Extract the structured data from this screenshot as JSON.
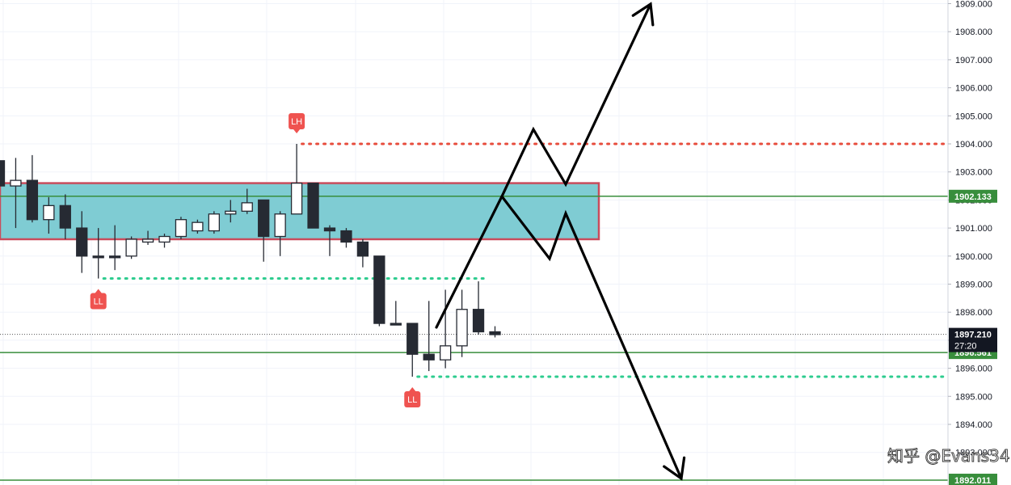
{
  "chart_data": {
    "type": "candlestick",
    "title": "",
    "xlabel": "",
    "ylabel": "",
    "ylim": [
      1892.0,
      1909.1
    ],
    "grid": true,
    "y_ticks": [
      "1909.000",
      "1908.000",
      "1907.000",
      "1906.000",
      "1905.000",
      "1904.000",
      "1903.000",
      "1902.000",
      "1901.000",
      "1900.000",
      "1899.000",
      "1898.000",
      "1897.000",
      "1896.000",
      "1895.000",
      "1894.000",
      "1893.000"
    ],
    "candles": [
      {
        "o": 1903.4,
        "h": 1903.5,
        "l": 1902.5,
        "c": 1902.5
      },
      {
        "o": 1902.5,
        "h": 1903.5,
        "l": 1901.0,
        "c": 1902.7
      },
      {
        "o": 1902.7,
        "h": 1903.6,
        "l": 1901.2,
        "c": 1901.3
      },
      {
        "o": 1901.3,
        "h": 1902.1,
        "l": 1900.8,
        "c": 1901.8
      },
      {
        "o": 1901.8,
        "h": 1902.2,
        "l": 1900.6,
        "c": 1901.0
      },
      {
        "o": 1901.0,
        "h": 1901.6,
        "l": 1899.4,
        "c": 1900.0
      },
      {
        "o": 1900.0,
        "h": 1901.0,
        "l": 1899.2,
        "c": 1900.0
      },
      {
        "o": 1900.0,
        "h": 1901.1,
        "l": 1899.5,
        "c": 1900.0
      },
      {
        "o": 1900.0,
        "h": 1900.7,
        "l": 1899.9,
        "c": 1900.6
      },
      {
        "o": 1900.5,
        "h": 1900.9,
        "l": 1900.4,
        "c": 1900.6
      },
      {
        "o": 1900.5,
        "h": 1900.8,
        "l": 1900.3,
        "c": 1900.7
      },
      {
        "o": 1900.7,
        "h": 1901.4,
        "l": 1900.6,
        "c": 1901.3
      },
      {
        "o": 1900.9,
        "h": 1901.3,
        "l": 1900.8,
        "c": 1901.2
      },
      {
        "o": 1900.9,
        "h": 1901.6,
        "l": 1900.8,
        "c": 1901.5
      },
      {
        "o": 1901.5,
        "h": 1902.0,
        "l": 1901.2,
        "c": 1901.6
      },
      {
        "o": 1901.6,
        "h": 1902.4,
        "l": 1901.5,
        "c": 1901.9
      },
      {
        "o": 1902.0,
        "h": 1902.0,
        "l": 1899.8,
        "c": 1900.7
      },
      {
        "o": 1900.7,
        "h": 1901.6,
        "l": 1900.0,
        "c": 1901.5
      },
      {
        "o": 1901.5,
        "h": 1904.0,
        "l": 1901.5,
        "c": 1902.6
      },
      {
        "o": 1902.6,
        "h": 1902.6,
        "l": 1901.0,
        "c": 1901.0
      },
      {
        "o": 1901.0,
        "h": 1901.1,
        "l": 1900.0,
        "c": 1900.9
      },
      {
        "o": 1900.9,
        "h": 1901.0,
        "l": 1900.3,
        "c": 1900.5
      },
      {
        "o": 1900.5,
        "h": 1900.6,
        "l": 1899.6,
        "c": 1900.0
      },
      {
        "o": 1900.0,
        "h": 1900.0,
        "l": 1897.5,
        "c": 1897.6
      },
      {
        "o": 1897.6,
        "h": 1898.4,
        "l": 1897.6,
        "c": 1897.6
      },
      {
        "o": 1897.6,
        "h": 1897.6,
        "l": 1895.7,
        "c": 1896.5
      },
      {
        "o": 1896.5,
        "h": 1898.4,
        "l": 1895.9,
        "c": 1896.3
      },
      {
        "o": 1896.3,
        "h": 1898.8,
        "l": 1896.0,
        "c": 1896.8
      },
      {
        "o": 1896.8,
        "h": 1898.8,
        "l": 1896.4,
        "c": 1898.1
      },
      {
        "o": 1898.1,
        "h": 1899.1,
        "l": 1897.2,
        "c": 1897.3
      },
      {
        "o": 1897.3,
        "h": 1897.5,
        "l": 1897.1,
        "c": 1897.2
      }
    ],
    "levels": [
      {
        "price": 1902.133,
        "label": "1902.133",
        "color": "#388e3c",
        "style": "solid"
      },
      {
        "price": 1896.561,
        "label": "1896.561",
        "color": "#388e3c",
        "style": "solid"
      },
      {
        "price": 1892.011,
        "label": "1892.011",
        "color": "#388e3c",
        "style": "solid"
      },
      {
        "price": 1904.0,
        "label": "",
        "color": "#e74c3c",
        "style": "dotted",
        "from_candle": 18
      },
      {
        "price": 1899.2,
        "label": "",
        "color": "#2ecc8f",
        "style": "dotted",
        "from_candle": 6,
        "to_candle": 30
      },
      {
        "price": 1895.7,
        "label": "",
        "color": "#2ecc8f",
        "style": "dotted",
        "from_candle": 25
      }
    ],
    "current_price": {
      "price": 1897.21,
      "label": "1897.210",
      "countdown": "27:20",
      "color": "#131722"
    },
    "zone": {
      "top": 1902.6,
      "bottom": 1900.6,
      "from_candle": 0,
      "fill": "#7fccd3",
      "border": "#c94c5c"
    },
    "markers": [
      {
        "label": "LH",
        "candle": 18,
        "position": "above",
        "color": "#ef5350"
      },
      {
        "label": "LL",
        "candle": 6,
        "position": "below",
        "color": "#ef5350"
      },
      {
        "label": "LL",
        "candle": 25,
        "position": "below",
        "color": "#ef5350"
      }
    ],
    "projections": [
      {
        "name": "up",
        "color": "#000000"
      },
      {
        "name": "down",
        "color": "#000000"
      }
    ],
    "watermark": "知乎 @Evans34",
    "colors": {
      "candle": "#262a33",
      "grid": "#f0f3fa",
      "text": "#131722"
    }
  }
}
